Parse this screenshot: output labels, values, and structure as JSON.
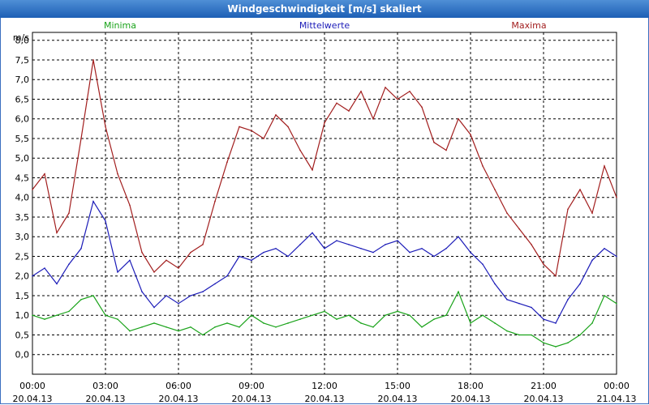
{
  "window_title": "Windgeschwindigkeit [m/s] skaliert",
  "colors": {
    "minima": "#1aa31a",
    "mittel": "#1c1cb8",
    "maxima": "#a21e1e",
    "grid": "#000000"
  },
  "chart_data": {
    "type": "line",
    "title": "Windgeschwindigkeit [m/s] skaliert",
    "ylabel": "m/s",
    "ylim": [
      -0.5,
      8.2
    ],
    "yticks": [
      "0,0",
      "0,5",
      "1,0",
      "1,5",
      "2,0",
      "2,5",
      "3,0",
      "3,5",
      "4,0",
      "4,5",
      "5,0",
      "5,5",
      "6,0",
      "6,5",
      "7,0",
      "7,5",
      "8,0"
    ],
    "x_range_hours": [
      0,
      24
    ],
    "xticks": [
      {
        "h": 0,
        "time": "00:00",
        "date": "20.04.13"
      },
      {
        "h": 3,
        "time": "03:00",
        "date": "20.04.13"
      },
      {
        "h": 6,
        "time": "06:00",
        "date": "20.04.13"
      },
      {
        "h": 9,
        "time": "09:00",
        "date": "20.04.13"
      },
      {
        "h": 12,
        "time": "12:00",
        "date": "20.04.13"
      },
      {
        "h": 15,
        "time": "15:00",
        "date": "20.04.13"
      },
      {
        "h": 18,
        "time": "18:00",
        "date": "20.04.13"
      },
      {
        "h": 21,
        "time": "21:00",
        "date": "20.04.13"
      },
      {
        "h": 24,
        "time": "00:00",
        "date": "21.04.13"
      }
    ],
    "grid": true,
    "legend_position": "top",
    "series": [
      {
        "name": "Minima",
        "color": "#1aa31a",
        "x_hours": [
          0,
          0.5,
          1,
          1.5,
          2,
          2.5,
          3,
          3.5,
          4,
          4.5,
          5,
          5.5,
          6,
          6.5,
          7,
          7.5,
          8,
          8.5,
          9,
          9.5,
          10,
          10.5,
          11,
          11.5,
          12,
          12.5,
          13,
          13.5,
          14,
          14.5,
          15,
          15.5,
          16,
          16.5,
          17,
          17.5,
          18,
          18.5,
          19,
          19.5,
          20,
          20.5,
          21,
          21.5,
          22,
          22.5,
          23,
          23.5,
          24
        ],
        "values": [
          1.0,
          0.9,
          1.0,
          1.1,
          1.4,
          1.5,
          1.0,
          0.9,
          0.6,
          0.7,
          0.8,
          0.7,
          0.6,
          0.7,
          0.5,
          0.7,
          0.8,
          0.7,
          1.0,
          0.8,
          0.7,
          0.8,
          0.9,
          1.0,
          1.1,
          0.9,
          1.0,
          0.8,
          0.7,
          1.0,
          1.1,
          1.0,
          0.7,
          0.9,
          1.0,
          1.6,
          0.8,
          1.0,
          0.8,
          0.6,
          0.5,
          0.5,
          0.3,
          0.2,
          0.3,
          0.5,
          0.8,
          1.5,
          1.3
        ]
      },
      {
        "name": "Mittelwerte",
        "color": "#1c1cb8",
        "x_hours": [
          0,
          0.5,
          1,
          1.5,
          2,
          2.5,
          3,
          3.5,
          4,
          4.5,
          5,
          5.5,
          6,
          6.5,
          7,
          7.5,
          8,
          8.5,
          9,
          9.5,
          10,
          10.5,
          11,
          11.5,
          12,
          12.5,
          13,
          13.5,
          14,
          14.5,
          15,
          15.5,
          16,
          16.5,
          17,
          17.5,
          18,
          18.5,
          19,
          19.5,
          20,
          20.5,
          21,
          21.5,
          22,
          22.5,
          23,
          23.5,
          24
        ],
        "values": [
          2.0,
          2.2,
          1.8,
          2.3,
          2.7,
          3.9,
          3.4,
          2.1,
          2.4,
          1.6,
          1.2,
          1.5,
          1.3,
          1.5,
          1.6,
          1.8,
          2.0,
          2.5,
          2.4,
          2.6,
          2.7,
          2.5,
          2.8,
          3.1,
          2.7,
          2.9,
          2.8,
          2.7,
          2.6,
          2.8,
          2.9,
          2.6,
          2.7,
          2.5,
          2.7,
          3.0,
          2.6,
          2.3,
          1.8,
          1.4,
          1.3,
          1.2,
          0.9,
          0.8,
          1.4,
          1.8,
          2.4,
          2.7,
          2.5
        ]
      },
      {
        "name": "Maxima",
        "color": "#a21e1e",
        "x_hours": [
          0,
          0.5,
          1,
          1.5,
          2,
          2.5,
          3,
          3.5,
          4,
          4.5,
          5,
          5.5,
          6,
          6.5,
          7,
          7.5,
          8,
          8.5,
          9,
          9.5,
          10,
          10.5,
          11,
          11.5,
          12,
          12.5,
          13,
          13.5,
          14,
          14.5,
          15,
          15.5,
          16,
          16.5,
          17,
          17.5,
          18,
          18.5,
          19,
          19.5,
          20,
          20.5,
          21,
          21.5,
          22,
          22.5,
          23,
          23.5,
          24
        ],
        "values": [
          4.2,
          4.6,
          3.1,
          3.6,
          5.5,
          7.5,
          5.8,
          4.6,
          3.8,
          2.6,
          2.1,
          2.4,
          2.2,
          2.6,
          2.8,
          3.9,
          4.9,
          5.8,
          5.7,
          5.5,
          6.1,
          5.8,
          5.2,
          4.7,
          5.9,
          6.4,
          6.2,
          6.7,
          6.0,
          6.8,
          6.5,
          6.7,
          6.3,
          5.4,
          5.2,
          6.0,
          5.6,
          4.8,
          4.2,
          3.6,
          3.2,
          2.8,
          2.3,
          2.0,
          3.7,
          4.2,
          3.6,
          4.8,
          4.0
        ]
      }
    ]
  }
}
